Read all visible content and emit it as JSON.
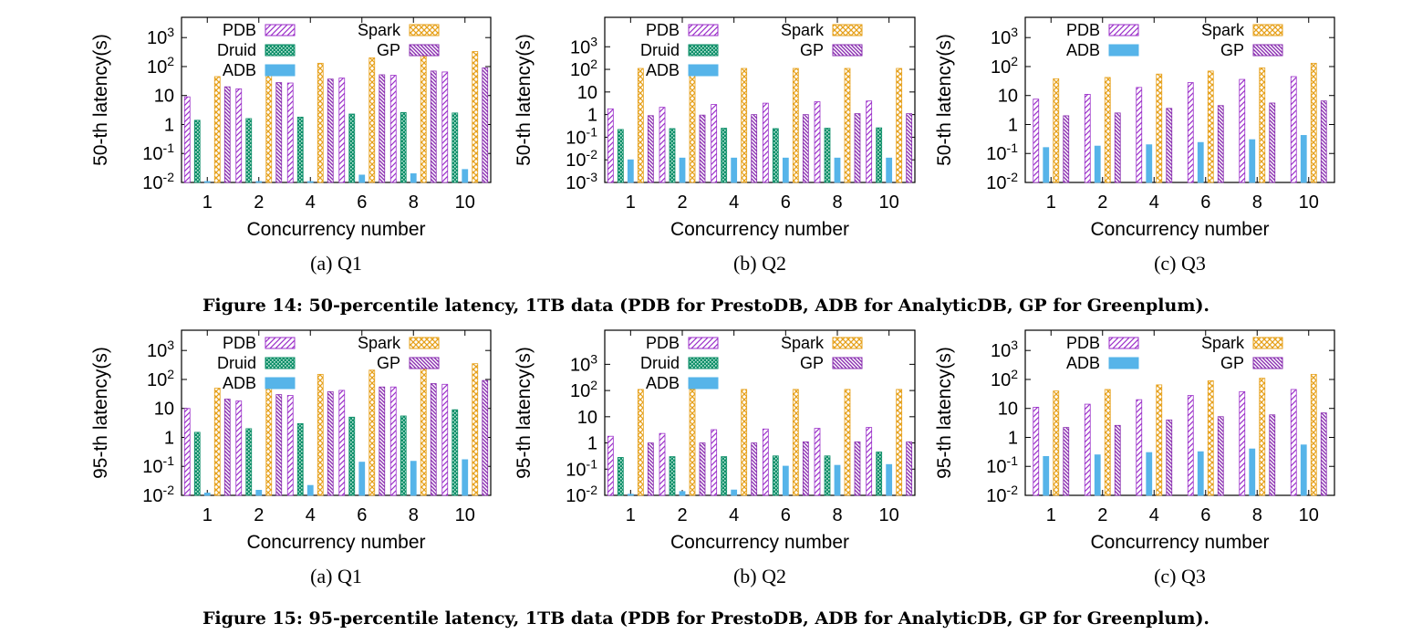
{
  "colors": {
    "PDB": "#9b2fc9",
    "Druid": "#0f8f6a",
    "ADB": "#56b4e9",
    "Spark": "#e6a01a",
    "GP": "#8a2fb0"
  },
  "figures": [
    {
      "caption": "Figure 14: 50-percentile latency, 1TB data (PDB for PrestoDB, ADB for AnalyticDB, GP for Greenplum)."
    },
    {
      "caption": "Figure 15: 95-percentile latency, 1TB data (PDB for PrestoDB, ADB for AnalyticDB, GP for Greenplum)."
    }
  ],
  "chart_data": [
    {
      "type": "bar",
      "log_scale": true,
      "subcaption": "(a) Q1",
      "xlabel": "Concurrency number",
      "ylabel": "50-th latency(s)",
      "categories": [
        "1",
        "2",
        "4",
        "6",
        "8",
        "10"
      ],
      "ylim": [
        0.01,
        5000
      ],
      "yticks": [
        {
          "v": 0.01,
          "label": "10-2",
          "sup": true
        },
        {
          "v": 0.1,
          "label": "10-1",
          "sup": true
        },
        {
          "v": 1,
          "label": "1"
        },
        {
          "v": 10,
          "label": "10"
        },
        {
          "v": 100,
          "label": "102",
          "sup": true
        },
        {
          "v": 1000,
          "label": "103",
          "sup": true
        }
      ],
      "series": [
        {
          "name": "PDB",
          "values": [
            9,
            17,
            27,
            40,
            50,
            65
          ]
        },
        {
          "name": "Druid",
          "values": [
            1.4,
            1.6,
            1.8,
            2.3,
            2.6,
            2.5
          ]
        },
        {
          "name": "ADB",
          "values": [
            0.01,
            0.01,
            0.01,
            0.018,
            0.02,
            0.028
          ]
        },
        {
          "name": "Spark",
          "values": [
            45,
            70,
            130,
            200,
            270,
            330
          ]
        },
        {
          "name": "GP",
          "values": [
            20,
            28,
            37,
            52,
            70,
            90
          ]
        }
      ]
    },
    {
      "type": "bar",
      "log_scale": true,
      "subcaption": "(b) Q2",
      "xlabel": "Concurrency number",
      "ylabel": "50-th latency(s)",
      "categories": [
        "1",
        "2",
        "4",
        "6",
        "8",
        "10"
      ],
      "ylim": [
        0.001,
        20000
      ],
      "yticks": [
        {
          "v": 0.001,
          "label": "10-3",
          "sup": true
        },
        {
          "v": 0.01,
          "label": "10-2",
          "sup": true
        },
        {
          "v": 0.1,
          "label": "10-1",
          "sup": true
        },
        {
          "v": 1,
          "label": "1"
        },
        {
          "v": 10,
          "label": "10"
        },
        {
          "v": 100,
          "label": "102",
          "sup": true
        },
        {
          "v": 1000,
          "label": "103",
          "sup": true
        }
      ],
      "series": [
        {
          "name": "PDB",
          "values": [
            1.8,
            2.1,
            2.8,
            3.2,
            3.7,
            4.0
          ]
        },
        {
          "name": "Druid",
          "values": [
            0.22,
            0.24,
            0.25,
            0.24,
            0.25,
            0.26
          ]
        },
        {
          "name": "ADB",
          "values": [
            0.01,
            0.012,
            0.012,
            0.012,
            0.012,
            0.012
          ]
        },
        {
          "name": "Spark",
          "values": [
            110,
            110,
            110,
            110,
            110,
            110
          ]
        },
        {
          "name": "GP",
          "values": [
            0.9,
            0.95,
            1.0,
            1.0,
            1.1,
            1.1
          ]
        }
      ]
    },
    {
      "type": "bar",
      "log_scale": true,
      "subcaption": "(c) Q3",
      "xlabel": "Concurrency number",
      "ylabel": "50-th latency(s)",
      "categories": [
        "1",
        "2",
        "4",
        "6",
        "8",
        "10"
      ],
      "ylim": [
        0.01,
        5000
      ],
      "yticks": [
        {
          "v": 0.01,
          "label": "10-2",
          "sup": true
        },
        {
          "v": 0.1,
          "label": "10-1",
          "sup": true
        },
        {
          "v": 1,
          "label": "1"
        },
        {
          "v": 10,
          "label": "10"
        },
        {
          "v": 100,
          "label": "102",
          "sup": true
        },
        {
          "v": 1000,
          "label": "103",
          "sup": true
        }
      ],
      "series": [
        {
          "name": "PDB",
          "values": [
            7.5,
            11,
            19,
            28,
            36,
            45
          ]
        },
        {
          "name": "ADB",
          "values": [
            0.16,
            0.18,
            0.2,
            0.24,
            0.3,
            0.42
          ]
        },
        {
          "name": "Spark",
          "values": [
            38,
            42,
            55,
            70,
            90,
            130
          ]
        },
        {
          "name": "GP",
          "values": [
            2.0,
            2.5,
            3.6,
            4.5,
            5.5,
            6.5
          ]
        }
      ]
    },
    {
      "type": "bar",
      "log_scale": true,
      "subcaption": "(a) Q1",
      "xlabel": "Concurrency number",
      "ylabel": "95-th latency(s)",
      "categories": [
        "1",
        "2",
        "4",
        "6",
        "8",
        "10"
      ],
      "ylim": [
        0.01,
        5000
      ],
      "yticks": [
        {
          "v": 0.01,
          "label": "10-2",
          "sup": true
        },
        {
          "v": 0.1,
          "label": "10-1",
          "sup": true
        },
        {
          "v": 1,
          "label": "1"
        },
        {
          "v": 10,
          "label": "10"
        },
        {
          "v": 100,
          "label": "102",
          "sup": true
        },
        {
          "v": 1000,
          "label": "103",
          "sup": true
        }
      ],
      "series": [
        {
          "name": "PDB",
          "values": [
            10,
            18,
            28,
            42,
            55,
            68
          ]
        },
        {
          "name": "Druid",
          "values": [
            1.5,
            2.0,
            3.0,
            5.0,
            5.5,
            9.0
          ]
        },
        {
          "name": "ADB",
          "values": [
            0.012,
            0.015,
            0.022,
            0.14,
            0.15,
            0.17
          ]
        },
        {
          "name": "Spark",
          "values": [
            50,
            80,
            150,
            210,
            280,
            350
          ]
        },
        {
          "name": "GP",
          "values": [
            21,
            30,
            38,
            55,
            72,
            92
          ]
        }
      ]
    },
    {
      "type": "bar",
      "log_scale": true,
      "subcaption": "(b) Q2",
      "xlabel": "Concurrency number",
      "ylabel": "95-th latency(s)",
      "categories": [
        "1",
        "2",
        "4",
        "6",
        "8",
        "10"
      ],
      "ylim": [
        0.01,
        20000
      ],
      "yticks": [
        {
          "v": 0.01,
          "label": "10-2",
          "sup": true
        },
        {
          "v": 0.1,
          "label": "10-1",
          "sup": true
        },
        {
          "v": 1,
          "label": "1"
        },
        {
          "v": 10,
          "label": "10"
        },
        {
          "v": 100,
          "label": "102",
          "sup": true
        },
        {
          "v": 1000,
          "label": "103",
          "sup": true
        }
      ],
      "series": [
        {
          "name": "PDB",
          "values": [
            1.8,
            2.3,
            3.2,
            3.4,
            3.6,
            3.9
          ]
        },
        {
          "name": "Druid",
          "values": [
            0.28,
            0.3,
            0.3,
            0.32,
            0.32,
            0.45
          ]
        },
        {
          "name": "ADB",
          "values": [
            0.011,
            0.014,
            0.016,
            0.13,
            0.14,
            0.15
          ]
        },
        {
          "name": "Spark",
          "values": [
            110,
            110,
            110,
            110,
            110,
            110
          ]
        },
        {
          "name": "GP",
          "values": [
            1.0,
            1.0,
            1.0,
            1.1,
            1.1,
            1.1
          ]
        }
      ]
    },
    {
      "type": "bar",
      "log_scale": true,
      "subcaption": "(c) Q3",
      "xlabel": "Concurrency number",
      "ylabel": "95-th latency(s)",
      "categories": [
        "1",
        "2",
        "4",
        "6",
        "8",
        "10"
      ],
      "ylim": [
        0.01,
        5000
      ],
      "yticks": [
        {
          "v": 0.01,
          "label": "10-2",
          "sup": true
        },
        {
          "v": 0.1,
          "label": "10-1",
          "sup": true
        },
        {
          "v": 1,
          "label": "1"
        },
        {
          "v": 10,
          "label": "10"
        },
        {
          "v": 100,
          "label": "102",
          "sup": true
        },
        {
          "v": 1000,
          "label": "103",
          "sup": true
        }
      ],
      "series": [
        {
          "name": "PDB",
          "values": [
            11,
            14,
            20,
            28,
            38,
            45
          ]
        },
        {
          "name": "ADB",
          "values": [
            0.22,
            0.25,
            0.3,
            0.32,
            0.4,
            0.55
          ]
        },
        {
          "name": "Spark",
          "values": [
            40,
            45,
            65,
            90,
            110,
            150
          ]
        },
        {
          "name": "GP",
          "values": [
            2.2,
            2.6,
            4.0,
            5.2,
            6.0,
            7.0
          ]
        }
      ]
    }
  ]
}
